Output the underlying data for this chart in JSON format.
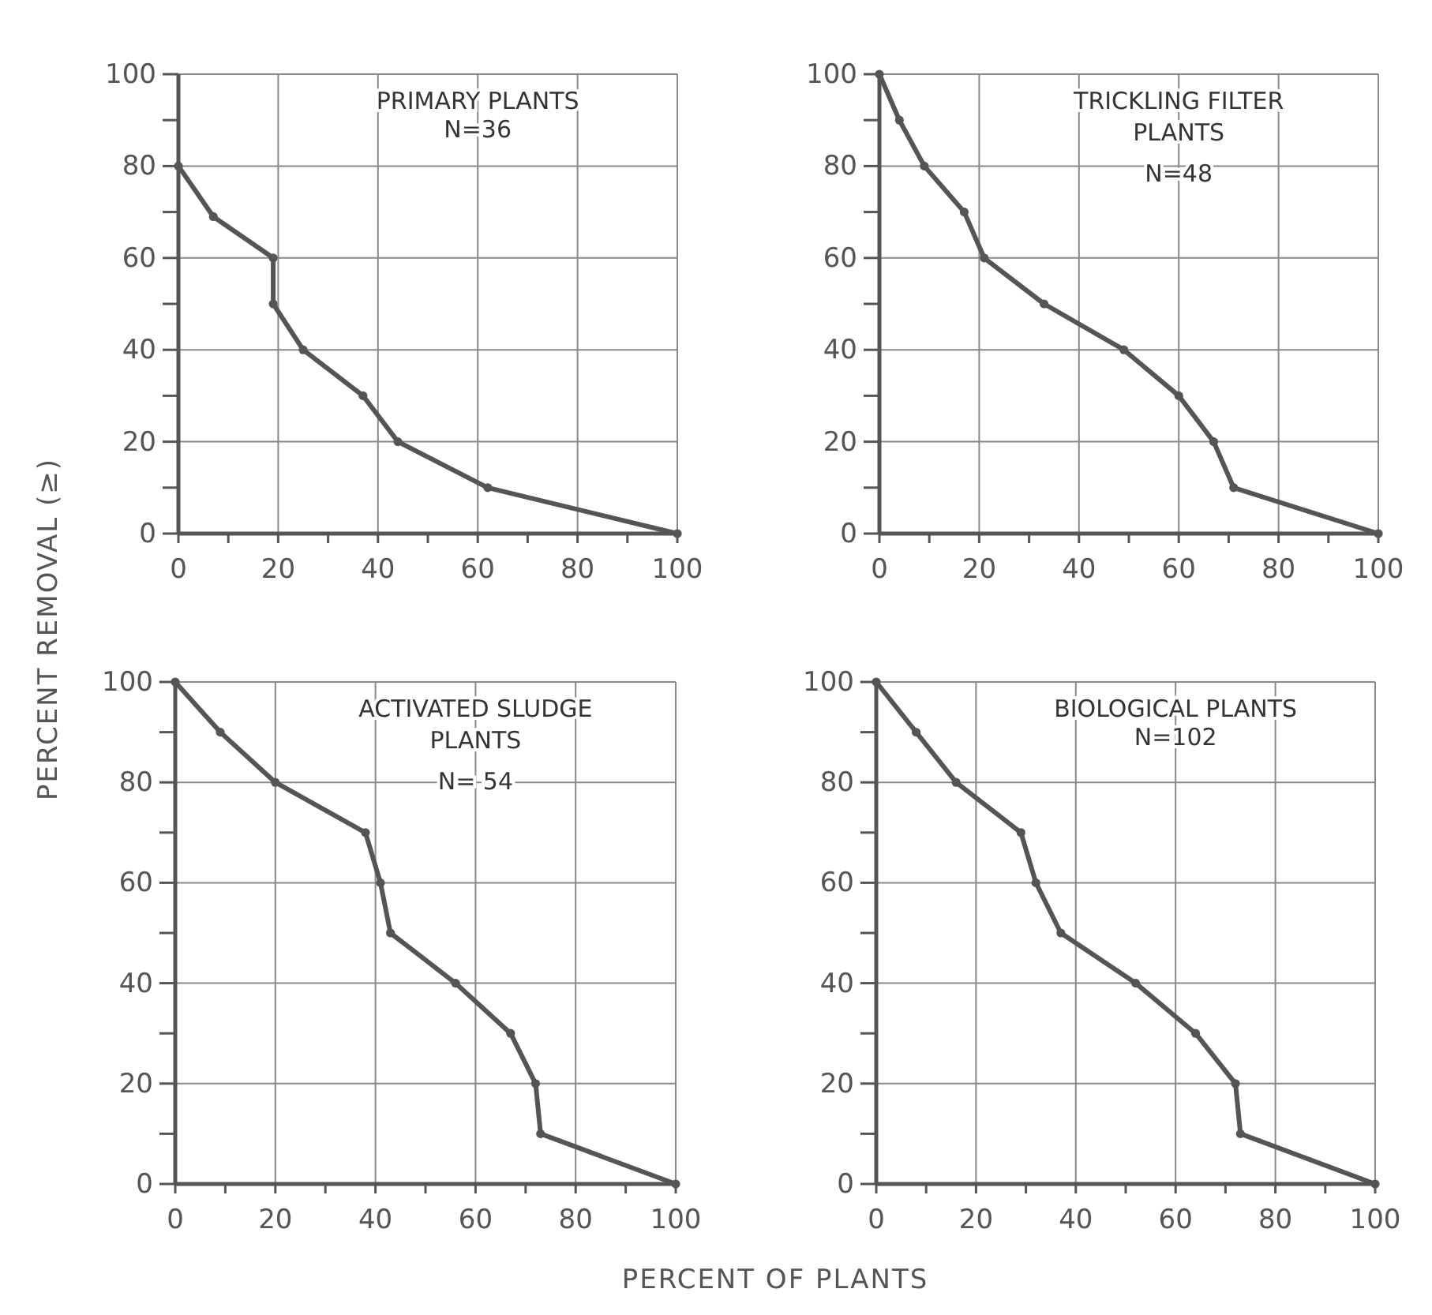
{
  "chart_data": [
    {
      "type": "line",
      "title": "PRIMARY PLANTS",
      "annotations": [
        "N=36"
      ],
      "ylabel": "PERCENT REMOVAL (≥)",
      "x": [
        0,
        7,
        19,
        19,
        25,
        37,
        44,
        62,
        100
      ],
      "series": [
        {
          "color": "#555555",
          "values": [
            80,
            69,
            60,
            50,
            40,
            30,
            20,
            10,
            0
          ]
        }
      ],
      "xlim": [
        0,
        100
      ],
      "ylim": [
        0,
        100
      ],
      "xticks": [
        0,
        {
          "value": 10,
          "label": null
        },
        20,
        {
          "value": 30,
          "label": null
        },
        40,
        {
          "value": 50,
          "label": null
        },
        60,
        {
          "value": 70,
          "label": null
        },
        80,
        {
          "value": 90,
          "label": null
        },
        100
      ],
      "yticks": [
        0,
        {
          "value": 10,
          "label": null
        },
        20,
        {
          "value": 30,
          "label": null
        },
        40,
        {
          "value": 50,
          "label": null
        },
        60,
        {
          "value": 70,
          "label": null
        },
        80,
        {
          "value": 90,
          "label": null
        },
        100
      ],
      "grid": true,
      "marker": "circle",
      "line_style": "solid"
    },
    {
      "type": "line",
      "title": "TRICKLING FILTER\nPLANTS",
      "annotations": [
        "N=48"
      ],
      "x": [
        0,
        4,
        9,
        17,
        21,
        33,
        49,
        60,
        67,
        71,
        100
      ],
      "series": [
        {
          "color": "#555555",
          "values": [
            100,
            90,
            80,
            70,
            60,
            50,
            40,
            30,
            20,
            10,
            0
          ]
        }
      ],
      "xlim": [
        0,
        100
      ],
      "ylim": [
        0,
        100
      ],
      "xticks": [
        0,
        {
          "value": 10,
          "label": null
        },
        20,
        {
          "value": 30,
          "label": null
        },
        40,
        {
          "value": 50,
          "label": null
        },
        60,
        {
          "value": 70,
          "label": null
        },
        80,
        {
          "value": 90,
          "label": null
        },
        100
      ],
      "yticks": [
        0,
        {
          "value": 10,
          "label": null
        },
        20,
        {
          "value": 30,
          "label": null
        },
        40,
        {
          "value": 50,
          "label": null
        },
        60,
        {
          "value": 70,
          "label": null
        },
        80,
        {
          "value": 90,
          "label": null
        },
        100
      ],
      "grid": true,
      "marker": "circle",
      "line_style": "solid"
    },
    {
      "type": "line",
      "title": "ACTIVATED SLUDGE\nPLANTS",
      "annotations": [
        "N= 54"
      ],
      "xlabel": "PERCENT OF PLANTS",
      "x": [
        0,
        9,
        20,
        38,
        41,
        43,
        56,
        67,
        72,
        73,
        100
      ],
      "series": [
        {
          "color": "#555555",
          "values": [
            100,
            90,
            80,
            70,
            60,
            50,
            40,
            30,
            20,
            10,
            0
          ]
        }
      ],
      "xlim": [
        0,
        100
      ],
      "ylim": [
        0,
        100
      ],
      "xticks": [
        0,
        {
          "value": 10,
          "label": null
        },
        20,
        {
          "value": 30,
          "label": null
        },
        40,
        {
          "value": 50,
          "label": null
        },
        60,
        {
          "value": 70,
          "label": null
        },
        80,
        {
          "value": 90,
          "label": null
        },
        100
      ],
      "yticks": [
        0,
        {
          "value": 10,
          "label": null
        },
        20,
        {
          "value": 30,
          "label": null
        },
        40,
        {
          "value": 50,
          "label": null
        },
        60,
        {
          "value": 70,
          "label": null
        },
        80,
        {
          "value": 90,
          "label": null
        },
        100
      ],
      "grid": true,
      "marker": "circle",
      "line_style": "solid"
    },
    {
      "type": "line",
      "title": "BIOLOGICAL PLANTS",
      "annotations": [
        "N=102"
      ],
      "x": [
        0,
        8,
        16,
        29,
        32,
        37,
        52,
        64,
        72,
        73,
        100
      ],
      "series": [
        {
          "color": "#555555",
          "values": [
            100,
            90,
            80,
            70,
            60,
            50,
            40,
            30,
            20,
            10,
            0
          ]
        }
      ],
      "xlim": [
        0,
        100
      ],
      "ylim": [
        0,
        100
      ],
      "xticks": [
        0,
        {
          "value": 10,
          "label": null
        },
        20,
        {
          "value": 30,
          "label": null
        },
        40,
        {
          "value": 50,
          "label": null
        },
        60,
        {
          "value": 70,
          "label": null
        },
        80,
        {
          "value": 90,
          "label": null
        },
        100
      ],
      "yticks": [
        0,
        {
          "value": 10,
          "label": null
        },
        20,
        {
          "value": 30,
          "label": null
        },
        40,
        {
          "value": 50,
          "label": null
        },
        60,
        {
          "value": 70,
          "label": null
        },
        80,
        {
          "value": 90,
          "label": null
        },
        100
      ],
      "grid": true,
      "marker": "circle",
      "line_style": "solid"
    }
  ]
}
